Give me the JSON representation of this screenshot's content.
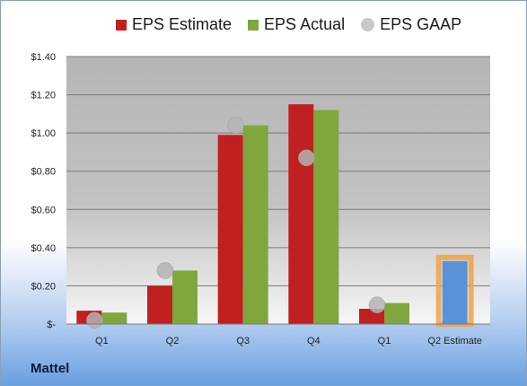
{
  "chart_data": {
    "type": "bar",
    "categories": [
      "Q1",
      "Q2",
      "Q3",
      "Q4",
      "Q1",
      "Q2 Estimate"
    ],
    "series": [
      {
        "name": "EPS Estimate",
        "values": [
          0.07,
          0.2,
          0.99,
          1.15,
          0.08,
          null
        ],
        "color": "#c0201f"
      },
      {
        "name": "EPS Actual",
        "values": [
          0.06,
          0.28,
          1.04,
          1.12,
          0.11,
          null
        ],
        "color": "#7fa73c"
      },
      {
        "name": "EPS GAAP",
        "values": [
          0.02,
          0.28,
          1.04,
          0.87,
          0.1,
          null
        ],
        "type": "scatter",
        "color": "#b4b4b4"
      }
    ],
    "estimate_bar": {
      "category": "Q2 Estimate",
      "value": 0.33,
      "color": "#5b91d6",
      "outline_color": "#f0a24a"
    },
    "yticks": [
      "$-",
      "$0.20",
      "$0.40",
      "$0.60",
      "$0.80",
      "$1.00",
      "$1.20",
      "$1.40"
    ],
    "ylim": [
      0,
      1.4
    ],
    "grid": true,
    "legend_position": "top"
  },
  "legend": {
    "estimate": "EPS Estimate",
    "actual": "EPS Actual",
    "gaap": "EPS GAAP"
  },
  "company": "Mattel"
}
